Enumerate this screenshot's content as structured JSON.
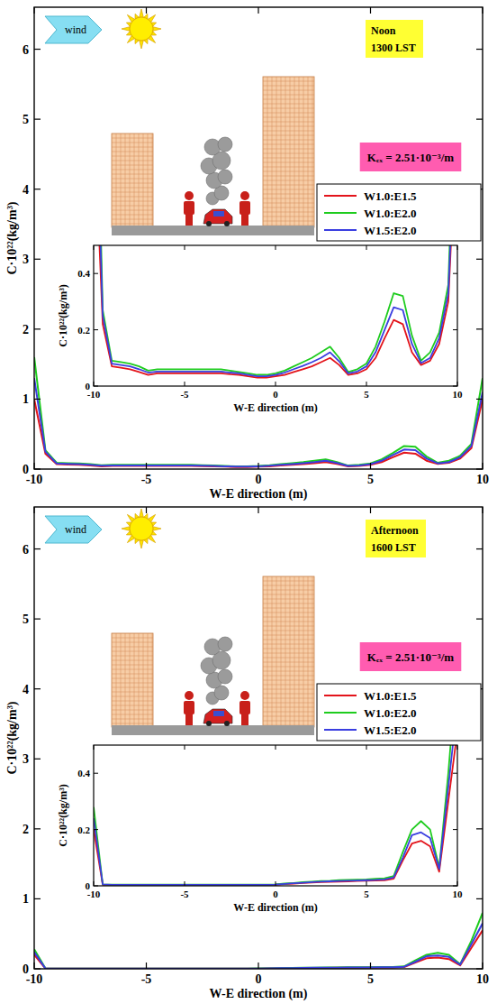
{
  "chart_data": [
    {
      "type": "line",
      "x": [
        -10,
        -9.5,
        -9,
        -8.5,
        -8,
        -7.5,
        -7,
        -6.5,
        -6,
        -5.5,
        -5,
        -4.5,
        -4,
        -3.5,
        -3,
        -2.5,
        -2,
        -1.5,
        -1,
        -0.5,
        0,
        0.5,
        1,
        1.5,
        2,
        2.5,
        3,
        3.5,
        4,
        4.5,
        5,
        5.5,
        6,
        6.5,
        7,
        7.5,
        8,
        8.5,
        9,
        9.5,
        10
      ],
      "series": [
        {
          "name": "W1.0:E1.5",
          "color": "#e3141b",
          "values": [
            1.0,
            0.22,
            0.07,
            0.065,
            0.06,
            0.05,
            0.04,
            0.045,
            0.045,
            0.045,
            0.045,
            0.045,
            0.045,
            0.045,
            0.045,
            0.042,
            0.04,
            0.035,
            0.03,
            0.03,
            0.035,
            0.04,
            0.05,
            0.06,
            0.07,
            0.085,
            0.1,
            0.075,
            0.04,
            0.045,
            0.06,
            0.1,
            0.17,
            0.235,
            0.22,
            0.12,
            0.075,
            0.09,
            0.15,
            0.3,
            1.0
          ]
        },
        {
          "name": "W1.0:E2.0",
          "color": "#1ecc1e",
          "values": [
            1.6,
            0.27,
            0.09,
            0.085,
            0.08,
            0.07,
            0.055,
            0.06,
            0.06,
            0.06,
            0.06,
            0.06,
            0.06,
            0.06,
            0.06,
            0.055,
            0.05,
            0.045,
            0.04,
            0.04,
            0.045,
            0.055,
            0.07,
            0.085,
            0.1,
            0.12,
            0.14,
            0.1,
            0.05,
            0.06,
            0.08,
            0.14,
            0.23,
            0.33,
            0.32,
            0.18,
            0.09,
            0.12,
            0.19,
            0.36,
            1.3
          ]
        },
        {
          "name": "W1.5:E2.0",
          "color": "#3a3ee0",
          "values": [
            1.3,
            0.25,
            0.08,
            0.075,
            0.07,
            0.06,
            0.048,
            0.052,
            0.052,
            0.052,
            0.052,
            0.052,
            0.052,
            0.052,
            0.052,
            0.048,
            0.045,
            0.04,
            0.035,
            0.035,
            0.04,
            0.048,
            0.06,
            0.072,
            0.085,
            0.1,
            0.12,
            0.088,
            0.045,
            0.052,
            0.07,
            0.12,
            0.2,
            0.28,
            0.27,
            0.15,
            0.082,
            0.1,
            0.17,
            0.33,
            1.1
          ]
        }
      ],
      "xlim": [
        -10,
        10
      ],
      "ylim": [
        0,
        6.6
      ],
      "xticks": [
        -10,
        -5,
        0,
        5,
        10
      ],
      "yticks": [
        0,
        1,
        2,
        3,
        4,
        5,
        6
      ],
      "x_label": "W-E direction (m)",
      "y_label": "C·10²²(kg/m³)",
      "legend": "upper right",
      "annotations": [
        "wind",
        "Noon",
        "1300 LST",
        "Kₑₓ = 2.51·10⁻³/m"
      ],
      "inset": {
        "xlim": [
          -10,
          10
        ],
        "ylim": [
          0,
          0.5
        ],
        "xticks": [
          -10,
          -5,
          0,
          5,
          10
        ],
        "yticks": [
          0,
          0.2,
          0.4
        ],
        "x_label": "W-E direction (m)",
        "y_label": "C·10²²(kg/m³)"
      }
    },
    {
      "type": "line",
      "x": [
        -10,
        -9.5,
        -9,
        -8.5,
        -8,
        -7.5,
        -7,
        -6.5,
        -6,
        -5.5,
        -5,
        -4.5,
        -4,
        -3.5,
        -3,
        -2.5,
        -2,
        -1.5,
        -1,
        -0.5,
        0,
        0.5,
        1,
        1.5,
        2,
        2.5,
        3,
        3.5,
        4,
        4.5,
        5,
        5.5,
        6,
        6.5,
        7,
        7.5,
        8,
        8.5,
        9,
        9.5,
        10
      ],
      "series": [
        {
          "name": "W1.0:E1.5",
          "color": "#e3141b",
          "values": [
            0.2,
            0.004,
            0.003,
            0.003,
            0.003,
            0.003,
            0.003,
            0.003,
            0.003,
            0.003,
            0.003,
            0.003,
            0.003,
            0.003,
            0.003,
            0.003,
            0.003,
            0.003,
            0.003,
            0.003,
            0.004,
            0.006,
            0.008,
            0.01,
            0.012,
            0.013,
            0.014,
            0.015,
            0.016,
            0.017,
            0.018,
            0.019,
            0.02,
            0.025,
            0.09,
            0.15,
            0.16,
            0.14,
            0.05,
            0.3,
            0.55
          ]
        },
        {
          "name": "W1.0:E2.0",
          "color": "#1ecc1e",
          "values": [
            0.28,
            0.005,
            0.004,
            0.004,
            0.004,
            0.004,
            0.004,
            0.004,
            0.004,
            0.004,
            0.004,
            0.004,
            0.004,
            0.004,
            0.004,
            0.004,
            0.004,
            0.004,
            0.004,
            0.004,
            0.005,
            0.008,
            0.01,
            0.013,
            0.015,
            0.017,
            0.018,
            0.02,
            0.021,
            0.022,
            0.023,
            0.025,
            0.027,
            0.035,
            0.12,
            0.2,
            0.23,
            0.2,
            0.065,
            0.4,
            0.8
          ]
        },
        {
          "name": "W1.5:E2.0",
          "color": "#3a3ee0",
          "values": [
            0.24,
            0.005,
            0.0035,
            0.0035,
            0.0035,
            0.0035,
            0.0035,
            0.0035,
            0.0035,
            0.0035,
            0.0035,
            0.0035,
            0.0035,
            0.0035,
            0.0035,
            0.0035,
            0.0035,
            0.0035,
            0.0035,
            0.0035,
            0.0045,
            0.007,
            0.009,
            0.011,
            0.013,
            0.015,
            0.016,
            0.017,
            0.018,
            0.019,
            0.02,
            0.021,
            0.023,
            0.03,
            0.1,
            0.18,
            0.19,
            0.17,
            0.06,
            0.35,
            0.65
          ]
        }
      ],
      "xlim": [
        -10,
        10
      ],
      "ylim": [
        0,
        6.6
      ],
      "xticks": [
        -10,
        -5,
        0,
        5,
        10
      ],
      "yticks": [
        0,
        1,
        2,
        3,
        4,
        5,
        6
      ],
      "x_label": "W-E direction (m)",
      "y_label": "C·10²²(kg/m³)",
      "legend": "upper right",
      "annotations": [
        "wind",
        "Afternoon",
        "1600 LST",
        "Kₑₓ = 2.51·10⁻³/m"
      ],
      "inset": {
        "xlim": [
          -10,
          10
        ],
        "ylim": [
          0,
          0.5
        ],
        "xticks": [
          -10,
          -5,
          0,
          5,
          10
        ],
        "yticks": [
          0,
          0.2,
          0.4
        ],
        "x_label": "W-E direction (m)",
        "y_label": "C·10²²(kg/m³)"
      }
    }
  ]
}
